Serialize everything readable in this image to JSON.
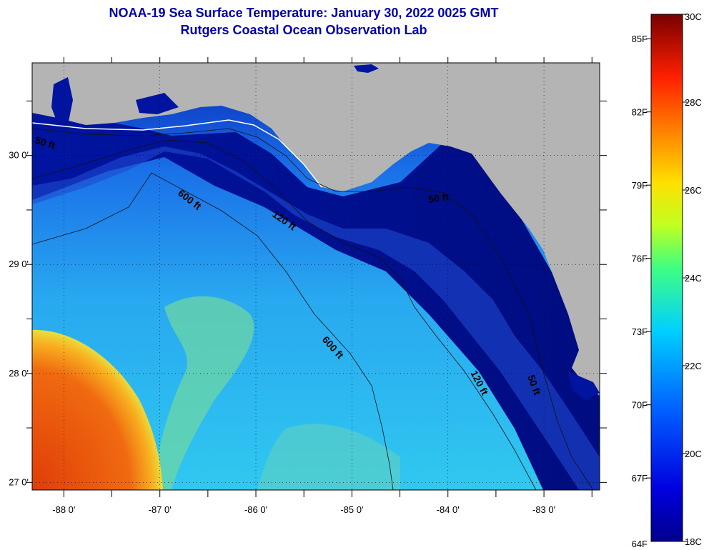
{
  "header": {
    "title": "NOAA-19 Sea Surface Temperature:  January 30, 2022 0025 GMT",
    "subtitle": "Rutgers Coastal Ocean Observation Lab"
  },
  "map": {
    "lon_range": [
      -88.33,
      -82.42
    ],
    "lat_range": [
      26.93,
      30.85
    ],
    "lon_ticks": [
      {
        "value": -88,
        "label": "-88 0'"
      },
      {
        "value": -87,
        "label": "-87 0'"
      },
      {
        "value": -86,
        "label": "-86 0'"
      },
      {
        "value": -85,
        "label": "-85 0'"
      },
      {
        "value": -84,
        "label": "-84 0'"
      },
      {
        "value": -83,
        "label": "-83 0'"
      }
    ],
    "lat_ticks": [
      {
        "value": 30,
        "label": "30 0'"
      },
      {
        "value": 29,
        "label": "29 0'"
      },
      {
        "value": 28,
        "label": "28 0'"
      },
      {
        "value": 27,
        "label": "27 0'"
      }
    ],
    "contour_labels": [
      "50 ft",
      "600 ft",
      "120 ft",
      "50 ft",
      "600 ft",
      "120 ft",
      "50 ft"
    ],
    "colors": {
      "land": "#b4b4b4",
      "deep_blue": "#000078",
      "blue": "#1440d8",
      "cyan": "#28c8f0",
      "green": "#88e080",
      "orange": "#f06010"
    }
  },
  "colorbar": {
    "fahrenheit": [
      "85F",
      "82F",
      "79F",
      "76F",
      "73F",
      "70F",
      "67F",
      "64F"
    ],
    "celsius": [
      "30C",
      "28C",
      "26C",
      "24C",
      "22C",
      "20C",
      "18C"
    ],
    "celsius_range": [
      18,
      30
    ]
  }
}
